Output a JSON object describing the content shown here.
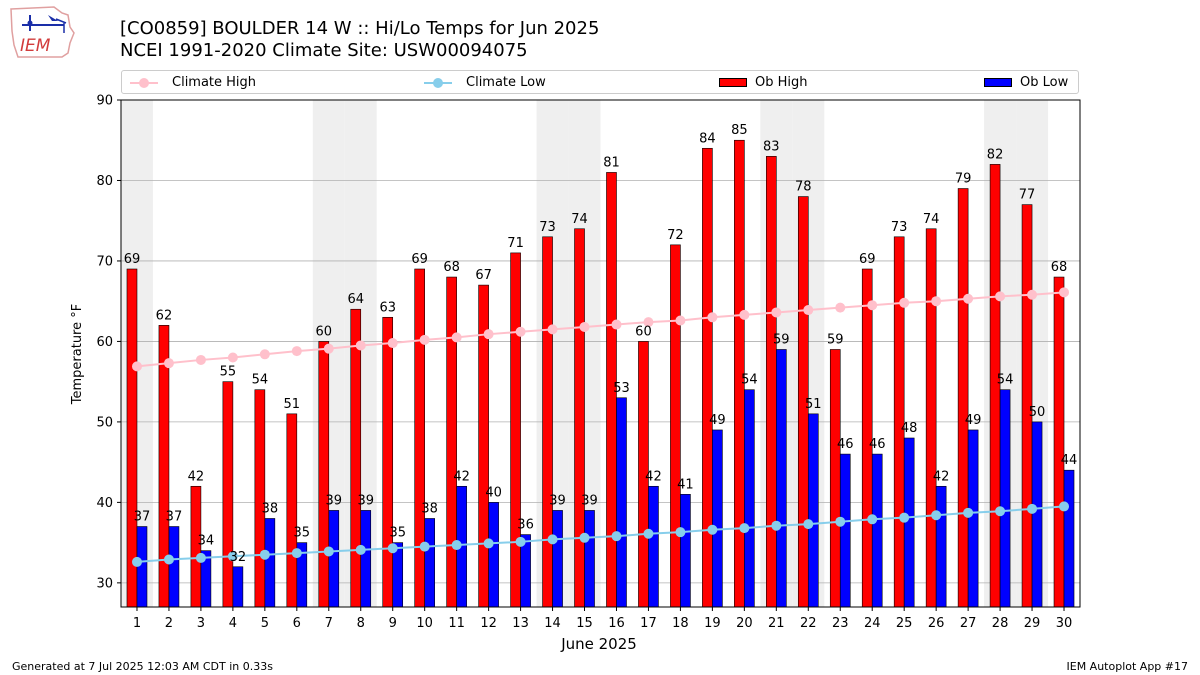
{
  "logo": {
    "text": "IEM"
  },
  "header": {
    "title_line1": "[CO0859] BOULDER 14 W :: Hi/Lo Temps for Jun 2025",
    "title_line2": "NCEI 1991-2020 Climate Site: USW00094075"
  },
  "footer": {
    "left": "Generated at 7 Jul 2025 12:03 AM CDT in 0.33s",
    "right": "IEM Autoplot App #17"
  },
  "chart_data": {
    "type": "bar",
    "xlabel": "June 2025",
    "ylabel": "Temperature °F",
    "ylim": [
      27,
      90
    ],
    "yticks": [
      30,
      40,
      50,
      60,
      70,
      80,
      90
    ],
    "grid": "horizontal",
    "legend_position": "top",
    "shaded_days": [
      1,
      7,
      8,
      14,
      15,
      21,
      22,
      28,
      29
    ],
    "categories": [
      "1",
      "2",
      "3",
      "4",
      "5",
      "6",
      "7",
      "8",
      "9",
      "10",
      "11",
      "12",
      "13",
      "14",
      "15",
      "16",
      "17",
      "18",
      "19",
      "20",
      "21",
      "22",
      "23",
      "24",
      "25",
      "26",
      "27",
      "28",
      "29",
      "30"
    ],
    "series": [
      {
        "name": "Climate High",
        "kind": "line",
        "color": "#ffc0cb",
        "values": [
          56.9,
          57.3,
          57.7,
          58.0,
          58.4,
          58.8,
          59.1,
          59.5,
          59.8,
          60.2,
          60.5,
          60.9,
          61.2,
          61.5,
          61.8,
          62.1,
          62.4,
          62.6,
          63.0,
          63.3,
          63.6,
          63.9,
          64.2,
          64.5,
          64.8,
          65.0,
          65.3,
          65.6,
          65.8,
          66.1
        ]
      },
      {
        "name": "Climate Low",
        "kind": "line",
        "color": "#87ceeb",
        "values": [
          32.6,
          32.9,
          33.1,
          33.3,
          33.5,
          33.7,
          33.9,
          34.1,
          34.3,
          34.5,
          34.7,
          34.9,
          35.1,
          35.4,
          35.6,
          35.8,
          36.1,
          36.3,
          36.6,
          36.8,
          37.1,
          37.3,
          37.6,
          37.9,
          38.1,
          38.4,
          38.7,
          38.9,
          39.2,
          39.5
        ]
      },
      {
        "name": "Ob High",
        "kind": "bar",
        "color": "#ff0000",
        "values": [
          69,
          62,
          42,
          55,
          54,
          51,
          60,
          64,
          63,
          69,
          68,
          67,
          71,
          73,
          74,
          81,
          60,
          72,
          84,
          85,
          83,
          78,
          59,
          69,
          73,
          74,
          79,
          82,
          77,
          68
        ]
      },
      {
        "name": "Ob Low",
        "kind": "bar",
        "color": "#0000ff",
        "values": [
          37,
          37,
          34,
          32,
          38,
          35,
          39,
          39,
          35,
          38,
          42,
          40,
          36,
          39,
          39,
          53,
          42,
          41,
          49,
          54,
          59,
          51,
          46,
          46,
          48,
          42,
          49,
          54,
          50,
          44
        ]
      }
    ]
  }
}
